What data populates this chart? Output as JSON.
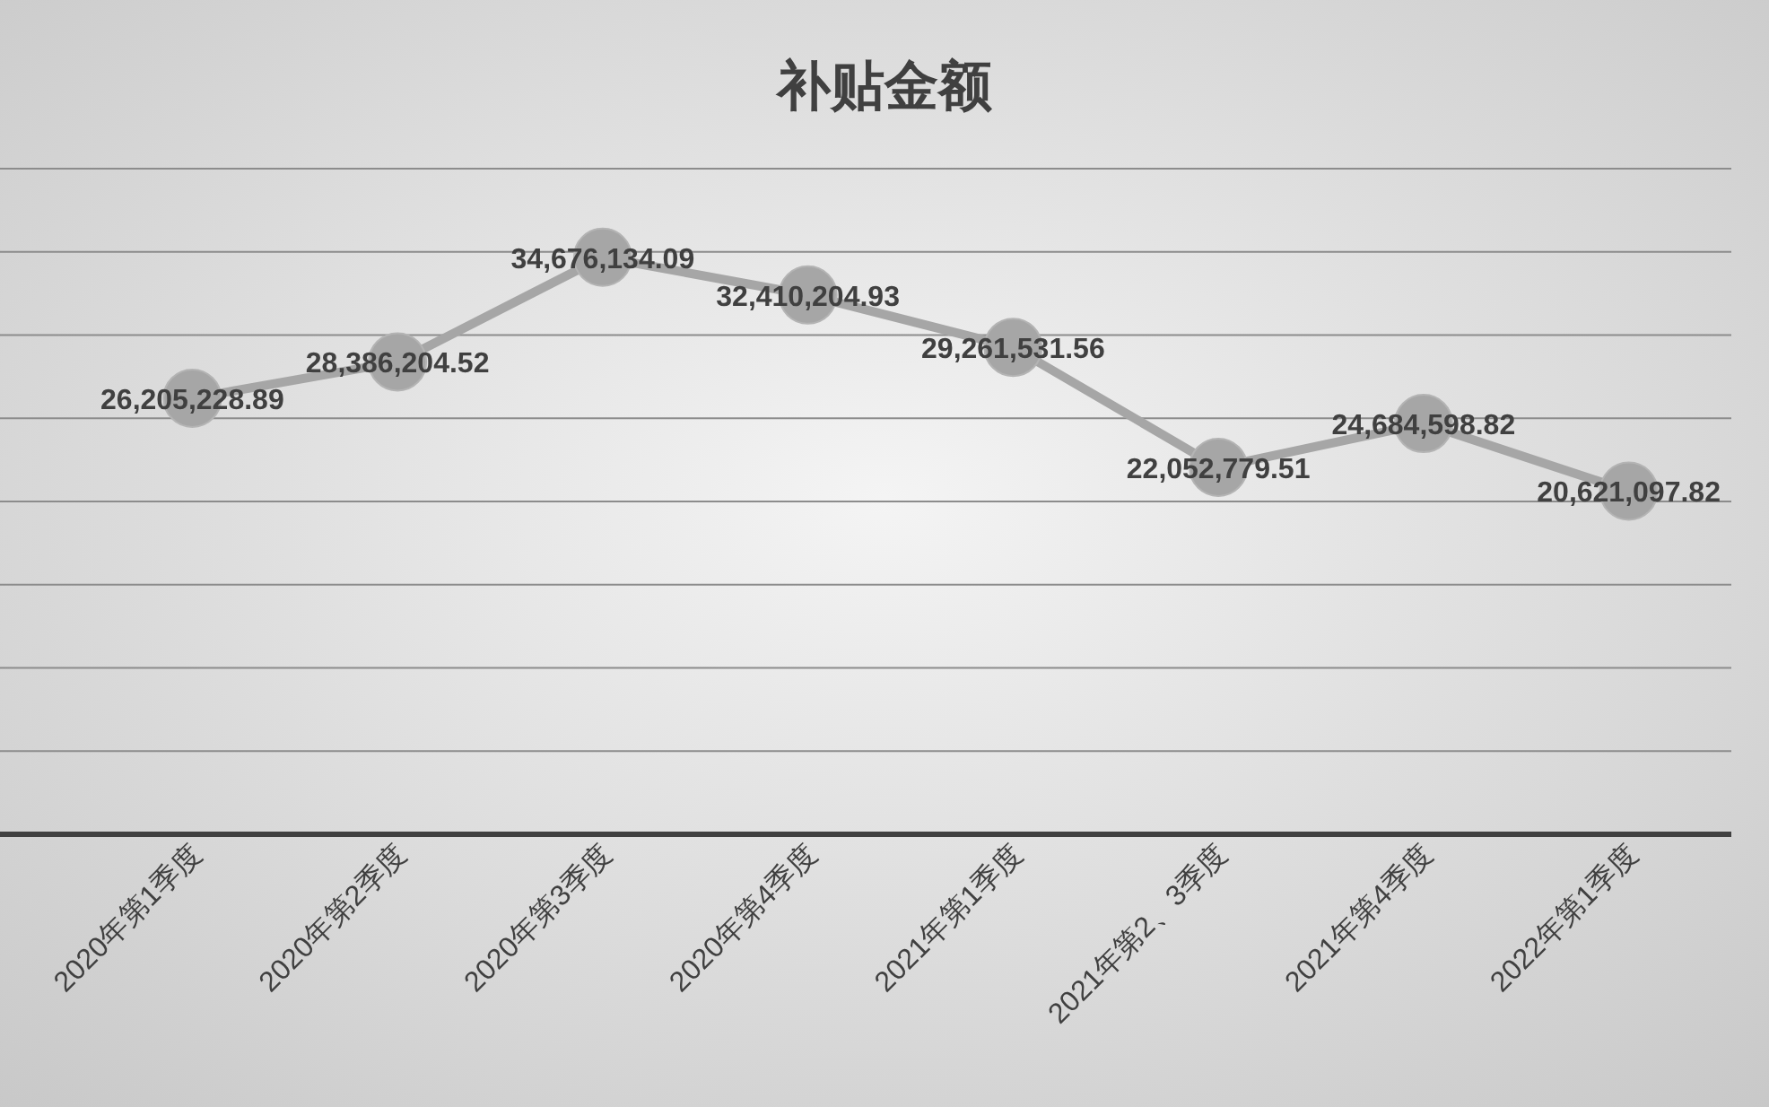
{
  "chart_data": {
    "type": "line",
    "title": "补贴金额",
    "categories": [
      "2020年第1季度",
      "2020年第2季度",
      "2020年第3季度",
      "2020年第4季度",
      "2021年第1季度",
      "2021年第2、3季度",
      "2021年第4季度",
      "2022年第1季度"
    ],
    "series": [
      {
        "color": "#a6a6a6",
        "values": [
          26205228.89,
          28386204.52,
          34676134.09,
          32410204.93,
          29261531.56,
          22052779.51,
          24684598.82,
          20621097.82
        ],
        "value_labels": [
          "26,205,228.89",
          "28,386,204.52",
          "34,676,134.09",
          "32,410,204.93",
          "29,261,531.56",
          "22,052,779.51",
          "24,684,598.82",
          "20,621,097.82"
        ]
      }
    ],
    "ylim": [
      0,
      40000000
    ],
    "yticks": [
      {
        "value": 0,
        "label": null
      },
      {
        "value": 5000000,
        "label": null
      },
      {
        "value": 10000000,
        "label": null
      },
      {
        "value": 15000000,
        "label": null
      },
      {
        "value": 20000000,
        "label": null
      },
      {
        "value": 25000000,
        "label": null
      },
      {
        "value": 30000000,
        "label": null
      },
      {
        "value": 35000000,
        "label": null
      },
      {
        "value": 40000000,
        "label": null
      }
    ],
    "grid": "y",
    "marker": "circle",
    "line_style": "solid"
  }
}
